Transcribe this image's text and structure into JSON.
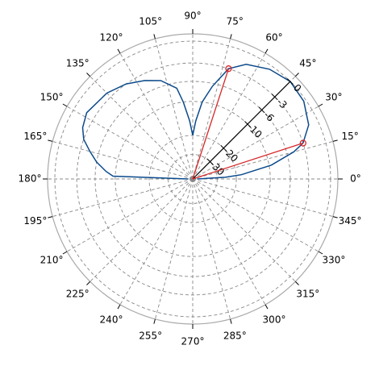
{
  "chart_data": {
    "type": "polar",
    "grid": true,
    "xticks": [
      {
        "value": 0,
        "label": "0°"
      },
      {
        "value": 15,
        "label": "15°"
      },
      {
        "value": 30,
        "label": "30°"
      },
      {
        "value": 45,
        "label": "45°"
      },
      {
        "value": 60,
        "label": "60°"
      },
      {
        "value": 75,
        "label": "75°"
      },
      {
        "value": 90,
        "label": "90°"
      },
      {
        "value": 105,
        "label": "105°"
      },
      {
        "value": 120,
        "label": "120°"
      },
      {
        "value": 135,
        "label": "135°"
      },
      {
        "value": 150,
        "label": "150°"
      },
      {
        "value": 165,
        "label": "165°"
      },
      {
        "value": 180,
        "label": "180°"
      },
      {
        "value": 195,
        "label": "195°"
      },
      {
        "value": 210,
        "label": "210°"
      },
      {
        "value": 225,
        "label": "225°"
      },
      {
        "value": 240,
        "label": "240°"
      },
      {
        "value": 255,
        "label": "255°"
      },
      {
        "value": 270,
        "label": "270°"
      },
      {
        "value": 285,
        "label": "285°"
      },
      {
        "value": 300,
        "label": "300°"
      },
      {
        "value": 315,
        "label": "315°"
      },
      {
        "value": 330,
        "label": "330°"
      },
      {
        "value": 345,
        "label": "345°"
      }
    ],
    "yticks": [
      0,
      -3,
      -6,
      -10,
      -20,
      -30
    ],
    "radial_axis_angle": 45,
    "series": [
      {
        "color": "#0b4a8b",
        "x": [
          0,
          3,
          5,
          10,
          15,
          18,
          25,
          35,
          45,
          55,
          65,
          72,
          78,
          83,
          87,
          90,
          93,
          97,
          100,
          108,
          116,
          125,
          135,
          148,
          155,
          160,
          165,
          170,
          175,
          178,
          180
        ],
        "values": [
          -60,
          -25,
          -18,
          -9.5,
          -4.8,
          -3,
          -1.3,
          -0.3,
          0,
          -0.5,
          -1.5,
          -3,
          -6.5,
          -10,
          -15,
          -20,
          -15,
          -10,
          -7,
          -5,
          -4,
          -3,
          -2.2,
          -1.7,
          -2.2,
          -3,
          -4.5,
          -6,
          -8,
          -9.5,
          -60
        ]
      }
    ],
    "markers": {
      "color": "#d62728",
      "x": [
        18,
        72
      ],
      "values": [
        -3,
        -3
      ]
    }
  }
}
